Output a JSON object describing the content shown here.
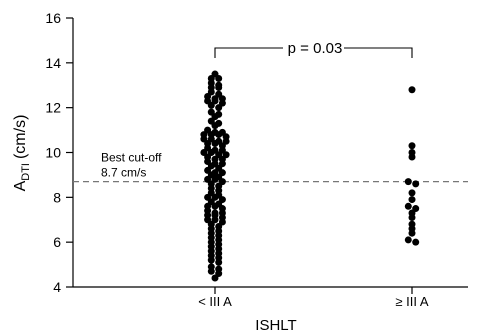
{
  "chart_data": {
    "type": "scatter",
    "subtype": "dot-strip",
    "xlabel": "ISHLT",
    "ylabel_main": "A",
    "ylabel_sub": "DTI",
    "ylabel_unit": "(cm/s)",
    "ylim": [
      4,
      16
    ],
    "yticks": [
      4,
      6,
      8,
      10,
      12,
      14,
      16
    ],
    "categories": [
      "< III A",
      "≥ III A"
    ],
    "series": [
      {
        "category": "< III A",
        "values": [
          13.5,
          13.3,
          13.3,
          13.1,
          13.0,
          12.9,
          12.9,
          12.7,
          12.6,
          12.5,
          12.4,
          12.4,
          12.3,
          12.3,
          12.2,
          12.1,
          12.0,
          11.8,
          11.7,
          11.6,
          11.4,
          11.3,
          11.2,
          11.0,
          10.9,
          10.9,
          10.8,
          10.8,
          10.8,
          10.7,
          10.6,
          10.6,
          10.5,
          10.5,
          10.4,
          10.4,
          10.3,
          10.2,
          10.1,
          10.1,
          10.0,
          10.0,
          9.9,
          9.9,
          9.8,
          9.7,
          9.7,
          9.6,
          9.5,
          9.5,
          9.4,
          9.3,
          9.2,
          9.1,
          9.1,
          9.0,
          8.9,
          8.8,
          8.8,
          8.7,
          8.6,
          8.5,
          8.4,
          8.3,
          8.2,
          8.1,
          8.0,
          8.0,
          7.9,
          7.8,
          7.7,
          7.6,
          7.6,
          7.5,
          7.4,
          7.3,
          7.3,
          7.2,
          7.2,
          7.1,
          7.0,
          7.0,
          6.9,
          6.8,
          6.7,
          6.6,
          6.5,
          6.4,
          6.3,
          6.2,
          6.1,
          6.0,
          5.9,
          5.8,
          5.7,
          5.6,
          5.5,
          5.4,
          5.3,
          5.2,
          5.1,
          4.9,
          4.8,
          4.7,
          4.6,
          4.4
        ]
      },
      {
        "category": "≥ III A",
        "values": [
          12.8,
          10.3,
          10.0,
          9.8,
          8.7,
          8.6,
          8.2,
          7.9,
          7.6,
          7.5,
          7.3,
          7.1,
          6.8,
          6.6,
          6.4,
          6.1,
          6.0
        ]
      }
    ],
    "annotations": {
      "cutoff_value": 8.7,
      "cutoff_label_line1": "Best cut-off",
      "cutoff_label_line2": "8.7 cm/s",
      "p_value_label": "p = 0.03"
    },
    "grid": false,
    "legend": "none"
  }
}
